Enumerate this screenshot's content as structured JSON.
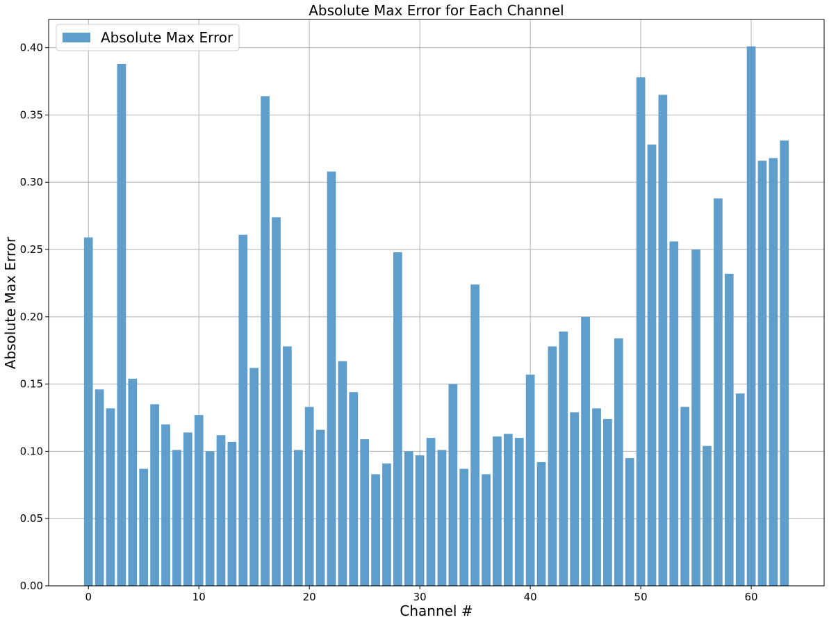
{
  "chart_data": {
    "type": "bar",
    "title": "Absolute Max Error for Each Channel",
    "xlabel": "Channel #",
    "ylabel": "Absolute Max Error",
    "series": [
      {
        "name": "Absolute Max Error",
        "color": "#5f9ecb",
        "x": [
          0,
          1,
          2,
          3,
          4,
          5,
          6,
          7,
          8,
          9,
          10,
          11,
          12,
          13,
          14,
          15,
          16,
          17,
          18,
          19,
          20,
          21,
          22,
          23,
          24,
          25,
          26,
          27,
          28,
          29,
          30,
          31,
          32,
          33,
          34,
          35,
          36,
          37,
          38,
          39,
          40,
          41,
          42,
          43,
          44,
          45,
          46,
          47,
          48,
          49,
          50,
          51,
          52,
          53,
          54,
          55,
          56,
          57,
          58,
          59,
          60,
          61,
          62,
          63
        ],
        "values": [
          0.259,
          0.146,
          0.132,
          0.388,
          0.154,
          0.087,
          0.135,
          0.12,
          0.101,
          0.114,
          0.127,
          0.1,
          0.112,
          0.107,
          0.261,
          0.162,
          0.364,
          0.274,
          0.178,
          0.101,
          0.133,
          0.116,
          0.308,
          0.167,
          0.144,
          0.109,
          0.083,
          0.091,
          0.248,
          0.1,
          0.097,
          0.11,
          0.101,
          0.15,
          0.087,
          0.224,
          0.083,
          0.111,
          0.113,
          0.11,
          0.157,
          0.092,
          0.178,
          0.189,
          0.129,
          0.2,
          0.132,
          0.124,
          0.184,
          0.095,
          0.378,
          0.328,
          0.365,
          0.256,
          0.133,
          0.25,
          0.104,
          0.288,
          0.232,
          0.143,
          0.401,
          0.316,
          0.318,
          0.331
        ]
      }
    ],
    "xlim": [
      -3.6,
      66.6
    ],
    "ylim": [
      0,
      0.421
    ],
    "xticks": [
      0,
      10,
      20,
      30,
      40,
      50,
      60
    ],
    "xtick_labels": [
      "0",
      "10",
      "20",
      "30",
      "40",
      "50",
      "60"
    ],
    "yticks": [
      0,
      0.05,
      0.1,
      0.15,
      0.2,
      0.25,
      0.3,
      0.35,
      0.4
    ],
    "ytick_labels": [
      "0.00",
      "0.05",
      "0.10",
      "0.15",
      "0.20",
      "0.25",
      "0.30",
      "0.35",
      "0.40"
    ],
    "grid": true,
    "legend_position": "upper-left"
  }
}
